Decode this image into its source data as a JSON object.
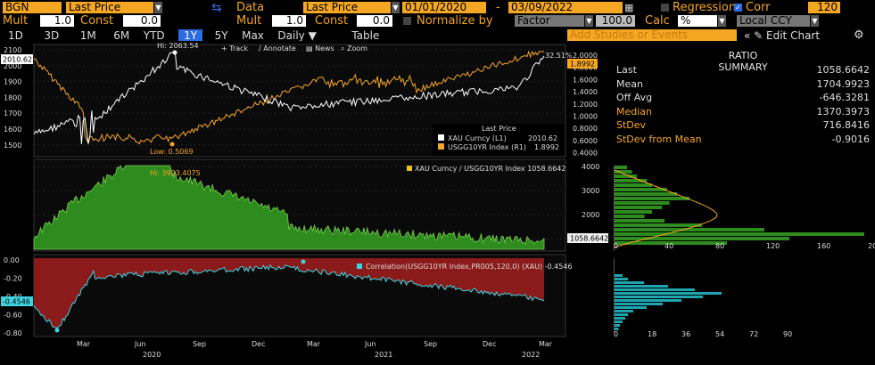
{
  "toolbar1": {
    "security": "BGN",
    "field": "Last Price",
    "arrows_icon": "swap-arrows-icon",
    "data_label": "Data",
    "data_field": "Last Price",
    "start_date": "01/01/2020",
    "date_sep": "-",
    "end_date": "03/09/2022",
    "regression_label": "Regression",
    "corr_label": "Corr",
    "corr_value": "120"
  },
  "toolbar2": {
    "mult_label": "Mult",
    "mult_value": "1.0",
    "const_label": "Const",
    "const_value": "0.0",
    "mult2_label": "Mult",
    "mult2_value": "1.0",
    "const2_label": "Const",
    "const2_value": "0.0",
    "normalize_label": "Normalize by",
    "normalize_value": "Factor",
    "factor_value": "100.0",
    "calc_label": "Calc",
    "calc_value": "%",
    "ccy_value": "Local CCY"
  },
  "tabs": [
    "1D",
    "3D",
    "1M",
    "6M",
    "YTD",
    "1Y",
    "5Y",
    "Max",
    "Daily ▼",
    "Table"
  ],
  "active_tab": "1Y",
  "studies_placeholder": "Add Studies or Events",
  "edit_chart_label": "« ✎ Edit Chart",
  "chart_tools": {
    "track": "+ Track",
    "annotate": "∕ Annotate",
    "news": "▤ News",
    "zoom": "⌕ Zoom"
  },
  "ratio_summary": {
    "title": "RATIO SUMMARY",
    "rows": [
      {
        "key": "Last",
        "value": "1058.6642",
        "orange": false
      },
      {
        "key": "Mean",
        "value": "1704.9923",
        "orange": false
      },
      {
        "key": "Off Avg",
        "value": "-646.3281",
        "orange": false
      },
      {
        "key": "Median",
        "value": "1370.3973",
        "orange": true
      },
      {
        "key": "StDev",
        "value": "716.8416",
        "orange": true
      },
      {
        "key": "StDev from Mean",
        "value": "-0.9016",
        "orange": true
      }
    ]
  },
  "colors": {
    "gold_series": "#ffffff",
    "yield_series": "#f5a623",
    "ratio_fill": "#2e8b1e",
    "corr_line": "#3fd4e0",
    "corr_fill": "#8b1a1a"
  },
  "chart_data": [
    {
      "type": "line",
      "title": "",
      "legend_title": "Last Price",
      "series": [
        {
          "name": "XAU Curncy  (L1)",
          "last": "2010.62"
        },
        {
          "name": "USGG10YR Index  (R1)",
          "last": "1.8992"
        }
      ],
      "left_ticks": [
        "2100",
        "2000",
        "1900",
        "1800",
        "1700",
        "1600",
        "1500"
      ],
      "right_ticks": [
        "2.0000",
        "1.8000",
        "1.6000",
        "1.4000",
        "1.2000",
        "1.0000",
        "0.8000",
        "0.6000",
        "0.4000"
      ],
      "hi_label": "Hi: 2063.54",
      "low_label": "Low: 0.5069",
      "pct_label": "32.51%",
      "left_last_tag": "2010.62",
      "right_last_tag": "1.8992",
      "ylim_left": [
        1450,
        2120
      ],
      "ylim_right": [
        0.35,
        2.1
      ]
    },
    {
      "type": "area",
      "legend": "XAU Curncy / USGG10YR Index 1058.6642",
      "hi_label": "Hi: 3923.4075",
      "ticks": [
        "4000",
        "3000",
        "2000",
        "1000"
      ],
      "last_tag": "1058.6642",
      "ylim": [
        0,
        4200
      ],
      "hist_ticks": [
        "0",
        "40",
        "80",
        "120",
        "160",
        "200"
      ]
    },
    {
      "type": "line",
      "legend": "Correlation(USGG10YR Index,PR005,120,0)  (XAU)  -0.4546",
      "ticks": [
        "0.00",
        "-0.20",
        "-0.40",
        "-0.60",
        "-0.80"
      ],
      "last_tag": "-0.4546",
      "ylim": [
        -0.85,
        0.02
      ],
      "hist_ticks": [
        "0",
        "18",
        "36",
        "54",
        "72",
        "90"
      ]
    }
  ],
  "x_axis": {
    "months": [
      "Mar",
      "Jun",
      "Sep",
      "Dec",
      "Mar",
      "Jun",
      "Sep",
      "Dec",
      "Mar"
    ],
    "years": [
      "2020",
      "2021",
      "2022"
    ]
  }
}
